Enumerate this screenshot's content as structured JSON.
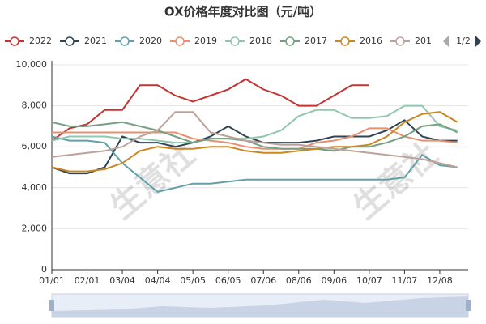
{
  "chart_data": {
    "type": "line",
    "title": "OX价格年度对比图（元/吨）",
    "watermark": "生意社",
    "legend_page": "1/2",
    "categories": [
      "01/01",
      null,
      "02/01",
      null,
      "03/04",
      null,
      "04/04",
      null,
      "05/05",
      null,
      "06/05",
      null,
      "07/06",
      null,
      "08/06",
      null,
      "09/06",
      null,
      "10/07",
      null,
      "11/07",
      null,
      "12/08",
      null
    ],
    "ylim": [
      0,
      10000
    ],
    "yticks": [
      0,
      {
        "value": 2000,
        "label": "2,000"
      },
      {
        "value": 4000,
        "label": "4,000"
      },
      {
        "value": 6000,
        "label": "6,000"
      },
      {
        "value": 8000,
        "label": "8,000"
      },
      {
        "value": 10000,
        "label": "10,000"
      }
    ],
    "grid": true,
    "series": [
      {
        "name": "2022",
        "color": "#c23531",
        "values": [
          6300,
          6900,
          7100,
          7800,
          7800,
          9000,
          9000,
          8500,
          8200,
          8500,
          8800,
          9300,
          8800,
          8500,
          8000,
          8000,
          8500,
          9000,
          9000,
          null,
          null,
          null,
          null,
          null
        ]
      },
      {
        "name": "2021",
        "color": "#2f4554",
        "values": [
          5000,
          4700,
          4700,
          5000,
          6500,
          6200,
          6200,
          6000,
          6200,
          6500,
          7000,
          6500,
          6200,
          6200,
          6200,
          6300,
          6500,
          6500,
          6500,
          6800,
          7300,
          6500,
          6300,
          6300
        ]
      },
      {
        "name": "2020",
        "color": "#61a0a8",
        "values": [
          6500,
          6300,
          6300,
          6200,
          5200,
          4500,
          3800,
          4000,
          4200,
          4200,
          4300,
          4400,
          4400,
          4400,
          4400,
          4400,
          4400,
          4400,
          4400,
          4400,
          4500,
          5600,
          5100,
          5000
        ]
      },
      {
        "name": "2019",
        "color": "#e98f6f",
        "values": [
          6700,
          6700,
          6700,
          6700,
          6700,
          6700,
          6700,
          6700,
          6400,
          6300,
          6200,
          6000,
          5900,
          5900,
          5900,
          6200,
          6300,
          6500,
          6900,
          6900,
          6500,
          6300,
          6300,
          6200
        ]
      },
      {
        "name": "2018",
        "color": "#91c7ae",
        "values": [
          6300,
          6500,
          6500,
          6500,
          6400,
          6400,
          6300,
          6200,
          6200,
          6400,
          6400,
          6400,
          6500,
          6800,
          7500,
          7800,
          7800,
          7400,
          7400,
          7500,
          8000,
          8000,
          7000,
          6800
        ]
      },
      {
        "name": "2017",
        "color": "#749f83",
        "values": [
          7200,
          7000,
          7000,
          7100,
          7200,
          7000,
          6800,
          6500,
          6200,
          6400,
          6400,
          6300,
          6000,
          5900,
          5900,
          5900,
          5800,
          6000,
          6000,
          6200,
          6500,
          7000,
          7100,
          6700
        ]
      },
      {
        "name": "2016",
        "color": "#ca8622",
        "values": [
          5000,
          4800,
          4800,
          4900,
          5200,
          5800,
          6000,
          5900,
          5900,
          6000,
          6000,
          5800,
          5700,
          5700,
          5800,
          5900,
          6000,
          6000,
          6100,
          6500,
          7200,
          7600,
          7700,
          7200
        ]
      },
      {
        "name": "201",
        "color": "#bda29a",
        "values": [
          5500,
          5600,
          5700,
          5800,
          6000,
          6500,
          6800,
          7700,
          7700,
          6700,
          6500,
          6300,
          6200,
          6100,
          6100,
          6000,
          5900,
          5800,
          5700,
          5600,
          5500,
          5400,
          5200,
          5000
        ]
      }
    ]
  }
}
